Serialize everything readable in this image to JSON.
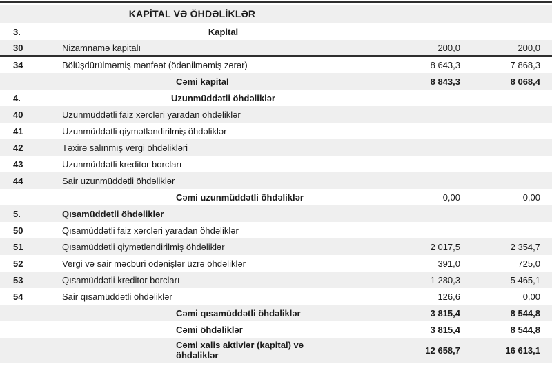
{
  "document": {
    "title": "KAPİTAL VƏ ÖHDƏLİKLƏR",
    "colors": {
      "stripe": "#efefef",
      "rule": "#2e2e2e",
      "text": "#1b1b1b",
      "background": "#ffffff"
    },
    "table": {
      "rows": [
        {
          "code": "",
          "label": "KAPİTAL VƏ ÖHDƏLİKLƏR",
          "v1": "",
          "v2": "",
          "variant": "title"
        },
        {
          "code": "3.",
          "label": "Kapital",
          "v1": "",
          "v2": "",
          "variant": "section"
        },
        {
          "code": "30",
          "label": "Nizamnamə kapitalı",
          "v1": "200,0",
          "v2": "200,0",
          "variant": "item",
          "rule_below": true
        },
        {
          "code": "34",
          "label": "Bölüşdürülməmiş mənfəət (ödənilməmiş zərər)",
          "v1": "8 643,3",
          "v2": "7 868,3",
          "variant": "item"
        },
        {
          "code": "",
          "label": "Cəmi kapital",
          "v1": "8 843,3",
          "v2": "8 068,4",
          "variant": "total"
        },
        {
          "code": "4.",
          "label": "Uzunmüddətli öhdəliklər",
          "v1": "",
          "v2": "",
          "variant": "section"
        },
        {
          "code": "40",
          "label": "Uzunmüddətli faiz xərcləri yaradan öhdəliklər",
          "v1": "",
          "v2": "",
          "variant": "item"
        },
        {
          "code": "41",
          "label": "Uzunmüddətli qiymətləndirilmiş öhdəliklər",
          "v1": "",
          "v2": "",
          "variant": "item"
        },
        {
          "code": "42",
          "label": "Təxirə salınmış vergi öhdəlikləri",
          "v1": "",
          "v2": "",
          "variant": "item"
        },
        {
          "code": "43",
          "label": "Uzunmüddətli kreditor borcları",
          "v1": "",
          "v2": "",
          "variant": "item"
        },
        {
          "code": "44",
          "label": "Sair uzunmüddətli öhdəliklər",
          "v1": "",
          "v2": "",
          "variant": "item"
        },
        {
          "code": "",
          "label": "Cəmi uzunmüddətli öhdəliklər",
          "v1": "0,00",
          "v2": "0,00",
          "variant": "total-plain"
        },
        {
          "code": "5.",
          "label": "Qısamüddətli öhdəliklər",
          "v1": "",
          "v2": "",
          "variant": "section-left"
        },
        {
          "code": "50",
          "label": "Qısamüddətli faiz xərcləri yaradan öhdəliklər",
          "v1": "",
          "v2": "",
          "variant": "item"
        },
        {
          "code": "51",
          "label": "Qısamüddətli qiymətləndirilmiş öhdəliklər",
          "v1": "2 017,5",
          "v2": "2 354,7",
          "variant": "item"
        },
        {
          "code": "52",
          "label": "Vergi və sair məcburi ödənişlər üzrə öhdəliklər",
          "v1": "391,0",
          "v2": "725,0",
          "variant": "item"
        },
        {
          "code": "53",
          "label": "Qısamüddətli kreditor borcları",
          "v1": "1 280,3",
          "v2": "5 465,1",
          "variant": "item"
        },
        {
          "code": "54",
          "label": "Sair qısamüddətli öhdəliklər",
          "v1": "126,6",
          "v2": "0,00",
          "variant": "item"
        },
        {
          "code": "",
          "label": "Cəmi qısamüddətli öhdəliklər",
          "v1": "3 815,4",
          "v2": "8 544,8",
          "variant": "total"
        },
        {
          "code": "",
          "label": "Cəmi öhdəliklər",
          "v1": "3 815,4",
          "v2": "8 544,8",
          "variant": "total"
        },
        {
          "code": "",
          "label": "Cəmi xalis aktivlər (kapital) və öhdəliklər",
          "v1": "12 658,7",
          "v2": "16 613,1",
          "variant": "total-tall"
        }
      ]
    }
  }
}
